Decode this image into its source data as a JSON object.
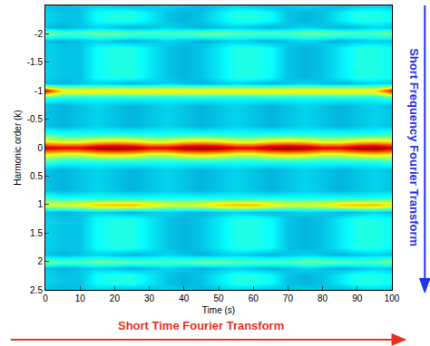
{
  "chart_data": {
    "type": "heatmap",
    "xlabel": "Time (s)",
    "ylabel": "Harmonic order (k)",
    "xlim": [
      0,
      100
    ],
    "ylim": [
      2.5,
      -2.5
    ],
    "xticks": [
      0,
      10,
      20,
      30,
      40,
      50,
      60,
      70,
      80,
      90,
      100
    ],
    "yticks": [
      -2,
      -1.5,
      -1,
      -0.5,
      0,
      0.5,
      1,
      1.5,
      2,
      2.5
    ],
    "zlim": [
      0,
      1
    ],
    "annotations": [
      {
        "text": "Short Time Fourier Transform",
        "color": "#e8321e"
      },
      {
        "text": "Short Frequency Fourier Transform",
        "color": "#2233ee"
      }
    ],
    "x": [
      0,
      5,
      10,
      15,
      20,
      25,
      30,
      35,
      40,
      45,
      50,
      55,
      60,
      65,
      70,
      75,
      80,
      85,
      90,
      95,
      100
    ],
    "y": [
      -2.5,
      -2.375,
      -2.25,
      -2.125,
      -2,
      -1.875,
      -1.75,
      -1.625,
      -1.5,
      -1.375,
      -1.25,
      -1.125,
      -1,
      -0.875,
      -0.75,
      -0.625,
      -0.5,
      -0.375,
      -0.25,
      -0.125,
      0,
      0.125,
      0.25,
      0.375,
      0.5,
      0.625,
      0.75,
      0.875,
      1,
      1.125,
      1.25,
      1.375,
      1.5,
      1.625,
      1.75,
      1.875,
      2,
      2.125,
      2.25,
      2.375,
      2.5
    ],
    "z": [
      [
        0.3,
        0.28,
        0.3,
        0.32,
        0.3,
        0.28,
        0.3,
        0.32,
        0.3,
        0.28,
        0.3,
        0.32,
        0.3,
        0.28,
        0.3,
        0.32,
        0.3,
        0.28,
        0.3,
        0.32,
        0.3
      ],
      [
        0.32,
        0.3,
        0.3,
        0.38,
        0.4,
        0.4,
        0.35,
        0.3,
        0.28,
        0.3,
        0.35,
        0.4,
        0.4,
        0.38,
        0.3,
        0.28,
        0.3,
        0.35,
        0.4,
        0.4,
        0.38
      ],
      [
        0.32,
        0.3,
        0.3,
        0.38,
        0.4,
        0.4,
        0.35,
        0.3,
        0.28,
        0.3,
        0.35,
        0.4,
        0.4,
        0.38,
        0.3,
        0.28,
        0.3,
        0.35,
        0.4,
        0.4,
        0.38
      ],
      [
        0.3,
        0.28,
        0.3,
        0.32,
        0.3,
        0.28,
        0.3,
        0.32,
        0.3,
        0.28,
        0.3,
        0.32,
        0.3,
        0.28,
        0.3,
        0.32,
        0.3,
        0.28,
        0.3,
        0.32,
        0.3
      ],
      [
        0.5,
        0.45,
        0.45,
        0.48,
        0.48,
        0.46,
        0.45,
        0.45,
        0.45,
        0.48,
        0.48,
        0.46,
        0.45,
        0.45,
        0.45,
        0.48,
        0.48,
        0.46,
        0.45,
        0.45,
        0.5
      ],
      [
        0.3,
        0.28,
        0.3,
        0.32,
        0.3,
        0.28,
        0.3,
        0.32,
        0.3,
        0.28,
        0.3,
        0.32,
        0.3,
        0.28,
        0.3,
        0.32,
        0.3,
        0.28,
        0.3,
        0.32,
        0.3
      ],
      [
        0.32,
        0.3,
        0.3,
        0.38,
        0.4,
        0.4,
        0.35,
        0.3,
        0.28,
        0.3,
        0.35,
        0.4,
        0.4,
        0.38,
        0.3,
        0.28,
        0.3,
        0.35,
        0.4,
        0.4,
        0.38
      ],
      [
        0.32,
        0.3,
        0.3,
        0.38,
        0.4,
        0.4,
        0.35,
        0.3,
        0.28,
        0.3,
        0.35,
        0.4,
        0.4,
        0.38,
        0.3,
        0.28,
        0.3,
        0.35,
        0.4,
        0.4,
        0.38
      ],
      [
        0.32,
        0.3,
        0.3,
        0.38,
        0.4,
        0.4,
        0.35,
        0.3,
        0.28,
        0.3,
        0.35,
        0.4,
        0.4,
        0.38,
        0.3,
        0.28,
        0.3,
        0.35,
        0.4,
        0.4,
        0.38
      ],
      [
        0.32,
        0.3,
        0.3,
        0.38,
        0.4,
        0.4,
        0.35,
        0.3,
        0.28,
        0.3,
        0.35,
        0.4,
        0.4,
        0.38,
        0.3,
        0.28,
        0.3,
        0.35,
        0.4,
        0.4,
        0.38
      ],
      [
        0.32,
        0.3,
        0.3,
        0.38,
        0.4,
        0.4,
        0.35,
        0.3,
        0.28,
        0.3,
        0.35,
        0.4,
        0.4,
        0.38,
        0.3,
        0.28,
        0.3,
        0.35,
        0.4,
        0.4,
        0.38
      ],
      [
        0.3,
        0.28,
        0.3,
        0.32,
        0.3,
        0.28,
        0.3,
        0.32,
        0.3,
        0.28,
        0.3,
        0.32,
        0.3,
        0.28,
        0.3,
        0.32,
        0.3,
        0.28,
        0.3,
        0.32,
        0.3
      ],
      [
        0.88,
        0.65,
        0.65,
        0.65,
        0.65,
        0.65,
        0.65,
        0.65,
        0.65,
        0.65,
        0.65,
        0.65,
        0.65,
        0.65,
        0.65,
        0.65,
        0.65,
        0.65,
        0.65,
        0.65,
        0.88
      ],
      [
        0.42,
        0.38,
        0.38,
        0.38,
        0.38,
        0.38,
        0.38,
        0.38,
        0.38,
        0.38,
        0.38,
        0.38,
        0.38,
        0.38,
        0.38,
        0.38,
        0.38,
        0.38,
        0.38,
        0.38,
        0.42
      ],
      [
        0.3,
        0.28,
        0.3,
        0.32,
        0.3,
        0.28,
        0.3,
        0.32,
        0.3,
        0.28,
        0.3,
        0.32,
        0.3,
        0.28,
        0.3,
        0.32,
        0.3,
        0.28,
        0.3,
        0.32,
        0.3
      ],
      [
        0.3,
        0.28,
        0.3,
        0.32,
        0.3,
        0.28,
        0.3,
        0.32,
        0.3,
        0.28,
        0.3,
        0.32,
        0.3,
        0.28,
        0.3,
        0.32,
        0.3,
        0.28,
        0.3,
        0.32,
        0.3
      ],
      [
        0.3,
        0.28,
        0.3,
        0.32,
        0.3,
        0.28,
        0.3,
        0.32,
        0.3,
        0.28,
        0.3,
        0.32,
        0.3,
        0.28,
        0.3,
        0.32,
        0.3,
        0.28,
        0.3,
        0.32,
        0.3
      ],
      [
        0.3,
        0.28,
        0.3,
        0.32,
        0.3,
        0.28,
        0.3,
        0.32,
        0.3,
        0.28,
        0.3,
        0.32,
        0.3,
        0.28,
        0.3,
        0.32,
        0.3,
        0.28,
        0.3,
        0.32,
        0.3
      ],
      [
        0.42,
        0.38,
        0.38,
        0.38,
        0.38,
        0.38,
        0.38,
        0.38,
        0.38,
        0.38,
        0.38,
        0.38,
        0.38,
        0.38,
        0.38,
        0.38,
        0.38,
        0.38,
        0.38,
        0.38,
        0.42
      ],
      [
        0.6,
        0.55,
        0.55,
        0.6,
        0.62,
        0.6,
        0.55,
        0.55,
        0.6,
        0.62,
        0.6,
        0.55,
        0.55,
        0.6,
        0.62,
        0.6,
        0.55,
        0.55,
        0.6,
        0.62,
        0.6
      ],
      [
        0.92,
        0.9,
        0.9,
        0.97,
        1.0,
        0.97,
        0.9,
        0.9,
        0.97,
        1.0,
        0.97,
        0.9,
        0.9,
        0.97,
        1.0,
        0.97,
        0.9,
        0.9,
        0.97,
        1.0,
        0.92
      ],
      [
        0.6,
        0.55,
        0.55,
        0.6,
        0.62,
        0.6,
        0.55,
        0.55,
        0.6,
        0.62,
        0.6,
        0.55,
        0.55,
        0.6,
        0.62,
        0.6,
        0.55,
        0.55,
        0.6,
        0.62,
        0.6
      ],
      [
        0.42,
        0.38,
        0.38,
        0.38,
        0.38,
        0.38,
        0.38,
        0.38,
        0.38,
        0.38,
        0.38,
        0.38,
        0.38,
        0.38,
        0.38,
        0.38,
        0.38,
        0.38,
        0.38,
        0.38,
        0.42
      ],
      [
        0.3,
        0.28,
        0.3,
        0.32,
        0.3,
        0.28,
        0.3,
        0.32,
        0.3,
        0.28,
        0.3,
        0.32,
        0.3,
        0.28,
        0.3,
        0.32,
        0.3,
        0.28,
        0.3,
        0.32,
        0.3
      ],
      [
        0.3,
        0.28,
        0.3,
        0.32,
        0.3,
        0.28,
        0.3,
        0.32,
        0.3,
        0.28,
        0.3,
        0.32,
        0.3,
        0.28,
        0.3,
        0.32,
        0.3,
        0.28,
        0.3,
        0.32,
        0.3
      ],
      [
        0.3,
        0.28,
        0.3,
        0.32,
        0.3,
        0.28,
        0.3,
        0.32,
        0.3,
        0.28,
        0.3,
        0.32,
        0.3,
        0.28,
        0.3,
        0.32,
        0.3,
        0.28,
        0.3,
        0.32,
        0.3
      ],
      [
        0.3,
        0.28,
        0.3,
        0.32,
        0.3,
        0.28,
        0.3,
        0.32,
        0.3,
        0.28,
        0.3,
        0.32,
        0.3,
        0.28,
        0.3,
        0.32,
        0.3,
        0.28,
        0.3,
        0.32,
        0.3
      ],
      [
        0.42,
        0.38,
        0.38,
        0.38,
        0.38,
        0.38,
        0.38,
        0.38,
        0.38,
        0.38,
        0.38,
        0.38,
        0.38,
        0.38,
        0.38,
        0.38,
        0.38,
        0.38,
        0.38,
        0.38,
        0.42
      ],
      [
        0.6,
        0.6,
        0.62,
        0.68,
        0.7,
        0.7,
        0.65,
        0.6,
        0.6,
        0.62,
        0.68,
        0.7,
        0.7,
        0.65,
        0.6,
        0.6,
        0.62,
        0.68,
        0.7,
        0.7,
        0.65
      ],
      [
        0.3,
        0.28,
        0.3,
        0.32,
        0.3,
        0.28,
        0.3,
        0.32,
        0.3,
        0.28,
        0.3,
        0.32,
        0.3,
        0.28,
        0.3,
        0.32,
        0.3,
        0.28,
        0.3,
        0.32,
        0.3
      ],
      [
        0.32,
        0.3,
        0.3,
        0.38,
        0.4,
        0.4,
        0.35,
        0.3,
        0.28,
        0.3,
        0.35,
        0.4,
        0.4,
        0.38,
        0.3,
        0.28,
        0.3,
        0.35,
        0.4,
        0.4,
        0.38
      ],
      [
        0.32,
        0.3,
        0.3,
        0.38,
        0.4,
        0.4,
        0.35,
        0.3,
        0.28,
        0.3,
        0.35,
        0.4,
        0.4,
        0.38,
        0.3,
        0.28,
        0.3,
        0.35,
        0.4,
        0.4,
        0.38
      ],
      [
        0.32,
        0.3,
        0.3,
        0.38,
        0.4,
        0.4,
        0.35,
        0.3,
        0.28,
        0.3,
        0.35,
        0.4,
        0.4,
        0.38,
        0.3,
        0.28,
        0.3,
        0.35,
        0.4,
        0.4,
        0.38
      ],
      [
        0.32,
        0.3,
        0.3,
        0.38,
        0.4,
        0.4,
        0.35,
        0.3,
        0.28,
        0.3,
        0.35,
        0.4,
        0.4,
        0.38,
        0.3,
        0.28,
        0.3,
        0.35,
        0.4,
        0.4,
        0.38
      ],
      [
        0.32,
        0.3,
        0.3,
        0.38,
        0.4,
        0.4,
        0.35,
        0.3,
        0.28,
        0.3,
        0.35,
        0.4,
        0.4,
        0.38,
        0.3,
        0.28,
        0.3,
        0.35,
        0.4,
        0.4,
        0.38
      ],
      [
        0.3,
        0.28,
        0.3,
        0.32,
        0.3,
        0.28,
        0.3,
        0.32,
        0.3,
        0.28,
        0.3,
        0.32,
        0.3,
        0.28,
        0.3,
        0.32,
        0.3,
        0.28,
        0.3,
        0.32,
        0.3
      ],
      [
        0.5,
        0.45,
        0.45,
        0.48,
        0.48,
        0.46,
        0.45,
        0.45,
        0.45,
        0.48,
        0.48,
        0.46,
        0.45,
        0.45,
        0.45,
        0.48,
        0.48,
        0.46,
        0.45,
        0.45,
        0.5
      ],
      [
        0.3,
        0.28,
        0.3,
        0.32,
        0.3,
        0.28,
        0.3,
        0.32,
        0.3,
        0.28,
        0.3,
        0.32,
        0.3,
        0.28,
        0.3,
        0.32,
        0.3,
        0.28,
        0.3,
        0.32,
        0.3
      ],
      [
        0.32,
        0.3,
        0.3,
        0.38,
        0.4,
        0.4,
        0.35,
        0.3,
        0.28,
        0.3,
        0.35,
        0.4,
        0.4,
        0.38,
        0.3,
        0.28,
        0.3,
        0.35,
        0.4,
        0.4,
        0.38
      ],
      [
        0.32,
        0.3,
        0.3,
        0.38,
        0.4,
        0.4,
        0.35,
        0.3,
        0.28,
        0.3,
        0.35,
        0.4,
        0.4,
        0.38,
        0.3,
        0.28,
        0.3,
        0.35,
        0.4,
        0.4,
        0.38
      ],
      [
        0.3,
        0.28,
        0.3,
        0.32,
        0.3,
        0.28,
        0.3,
        0.32,
        0.3,
        0.28,
        0.3,
        0.32,
        0.3,
        0.28,
        0.3,
        0.32,
        0.3,
        0.28,
        0.3,
        0.32,
        0.3
      ]
    ]
  }
}
